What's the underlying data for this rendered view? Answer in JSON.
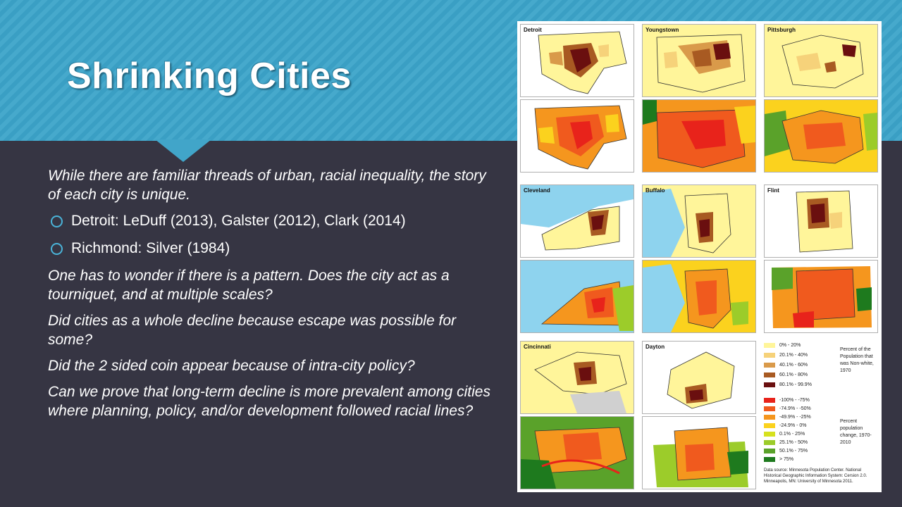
{
  "slide": {
    "title": "Shrinking Cities",
    "intro": "While there are familiar threads of urban, racial inequality, the story of each city is unique.",
    "bullets": [
      "Detroit: LeDuff (2013), Galster (2012), Clark (2014)",
      "Richmond: Silver (1984)"
    ],
    "paragraphs": [
      "One has to wonder if there is a pattern. Does the city act as a tourniquet, and at multiple scales?",
      "Did cities as a whole decline because escape was possible for some?",
      "Did the 2 sided coin appear because of intra-city policy?",
      "Can we prove that long-term decline is more prevalent among cities where planning, policy, and/or development followed racial lines?"
    ]
  },
  "figure": {
    "cities": [
      "Detroit",
      "Youngstown",
      "Pittsburgh",
      "Cleveland",
      "Buffalo",
      "Flint",
      "Cincinnati",
      "Dayton"
    ],
    "legend_race": {
      "title": "Percent of the Population that was Non-white, 1970",
      "items": [
        {
          "label": "0% - 20%",
          "color": "#fff59a"
        },
        {
          "label": "20.1% - 40%",
          "color": "#f6d27a"
        },
        {
          "label": "40.1% - 60%",
          "color": "#d99a4a"
        },
        {
          "label": "60.1% - 80%",
          "color": "#a85a22"
        },
        {
          "label": "80.1% - 99.9%",
          "color": "#6a0f0f"
        }
      ]
    },
    "legend_change": {
      "title": "Percent population change, 1970-2010",
      "items": [
        {
          "label": "-100% - -75%",
          "color": "#e8231b"
        },
        {
          "label": "-74.9% - -50%",
          "color": "#f05a1e"
        },
        {
          "label": "-49.9% - -25%",
          "color": "#f5961e"
        },
        {
          "label": "-24.9% - 0%",
          "color": "#fbd21e"
        },
        {
          "label": "0.1% - 25%",
          "color": "#d6e11e"
        },
        {
          "label": "25.1% - 50%",
          "color": "#9ccc2a"
        },
        {
          "label": "50.1% - 75%",
          "color": "#5aa22a"
        },
        {
          "label": "> 75%",
          "color": "#1e7a1e"
        }
      ]
    },
    "source": "Data source: Minnesota Population Center. National Historical Geographic Information System: Cersion 2.0. Minneapolis, MN: University of Minnesota 2011."
  }
}
